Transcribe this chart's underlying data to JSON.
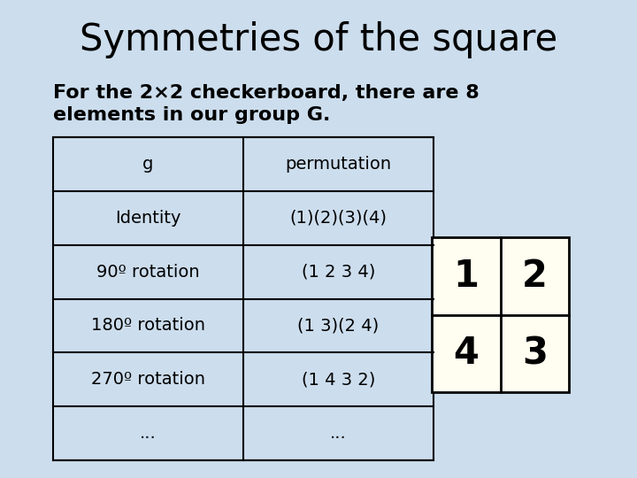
{
  "title": "Symmetries of the square",
  "subtitle_line1": "For the 2×2 checkerboard, there are 8",
  "subtitle_line2": "elements in our group G.",
  "bg_color": "#ccdded",
  "table_headers": [
    "g",
    "permutation"
  ],
  "table_rows": [
    [
      "Identity",
      "(1)(2)(3)(4)"
    ],
    [
      "90º rotation",
      "(1 2 3 4)"
    ],
    [
      "180º rotation",
      "(1 3)(2 4)"
    ],
    [
      "270º rotation",
      "(1 4 3 2)"
    ],
    [
      "...",
      "..."
    ]
  ],
  "grid_numbers": [
    [
      "1",
      "2"
    ],
    [
      "4",
      "3"
    ]
  ],
  "title_fontsize": 30,
  "subtitle_fontsize": 16,
  "table_fontsize": 14,
  "grid_fontsize": 30,
  "title_color": "#000000",
  "subtitle_color": "#000000",
  "table_text_color": "#000000",
  "grid_bg": "#fffef0",
  "grid_border": "#000000",
  "table_border": "#000000",
  "table_bg": "#ccdded"
}
